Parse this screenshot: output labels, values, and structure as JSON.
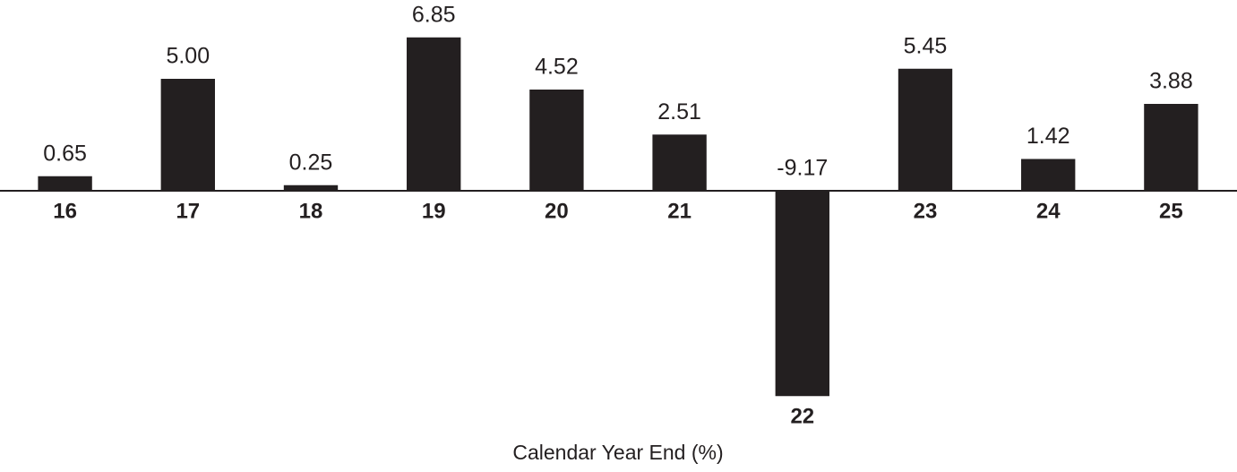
{
  "chart_data": {
    "type": "bar",
    "x_label": "Calendar Year End (%)",
    "categories": [
      "16",
      "17",
      "18",
      "19",
      "20",
      "21",
      "22",
      "23",
      "24",
      "25"
    ],
    "values": [
      0.65,
      5.0,
      0.25,
      6.85,
      4.52,
      2.51,
      -9.17,
      5.45,
      1.42,
      3.88
    ],
    "value_labels": [
      "0.65",
      "5.00",
      "0.25",
      "6.85",
      "4.52",
      "2.51",
      "-9.17",
      "5.45",
      "1.42",
      "3.88"
    ],
    "color": "#231f20",
    "ylim": [
      -10,
      8
    ],
    "grid": false
  }
}
